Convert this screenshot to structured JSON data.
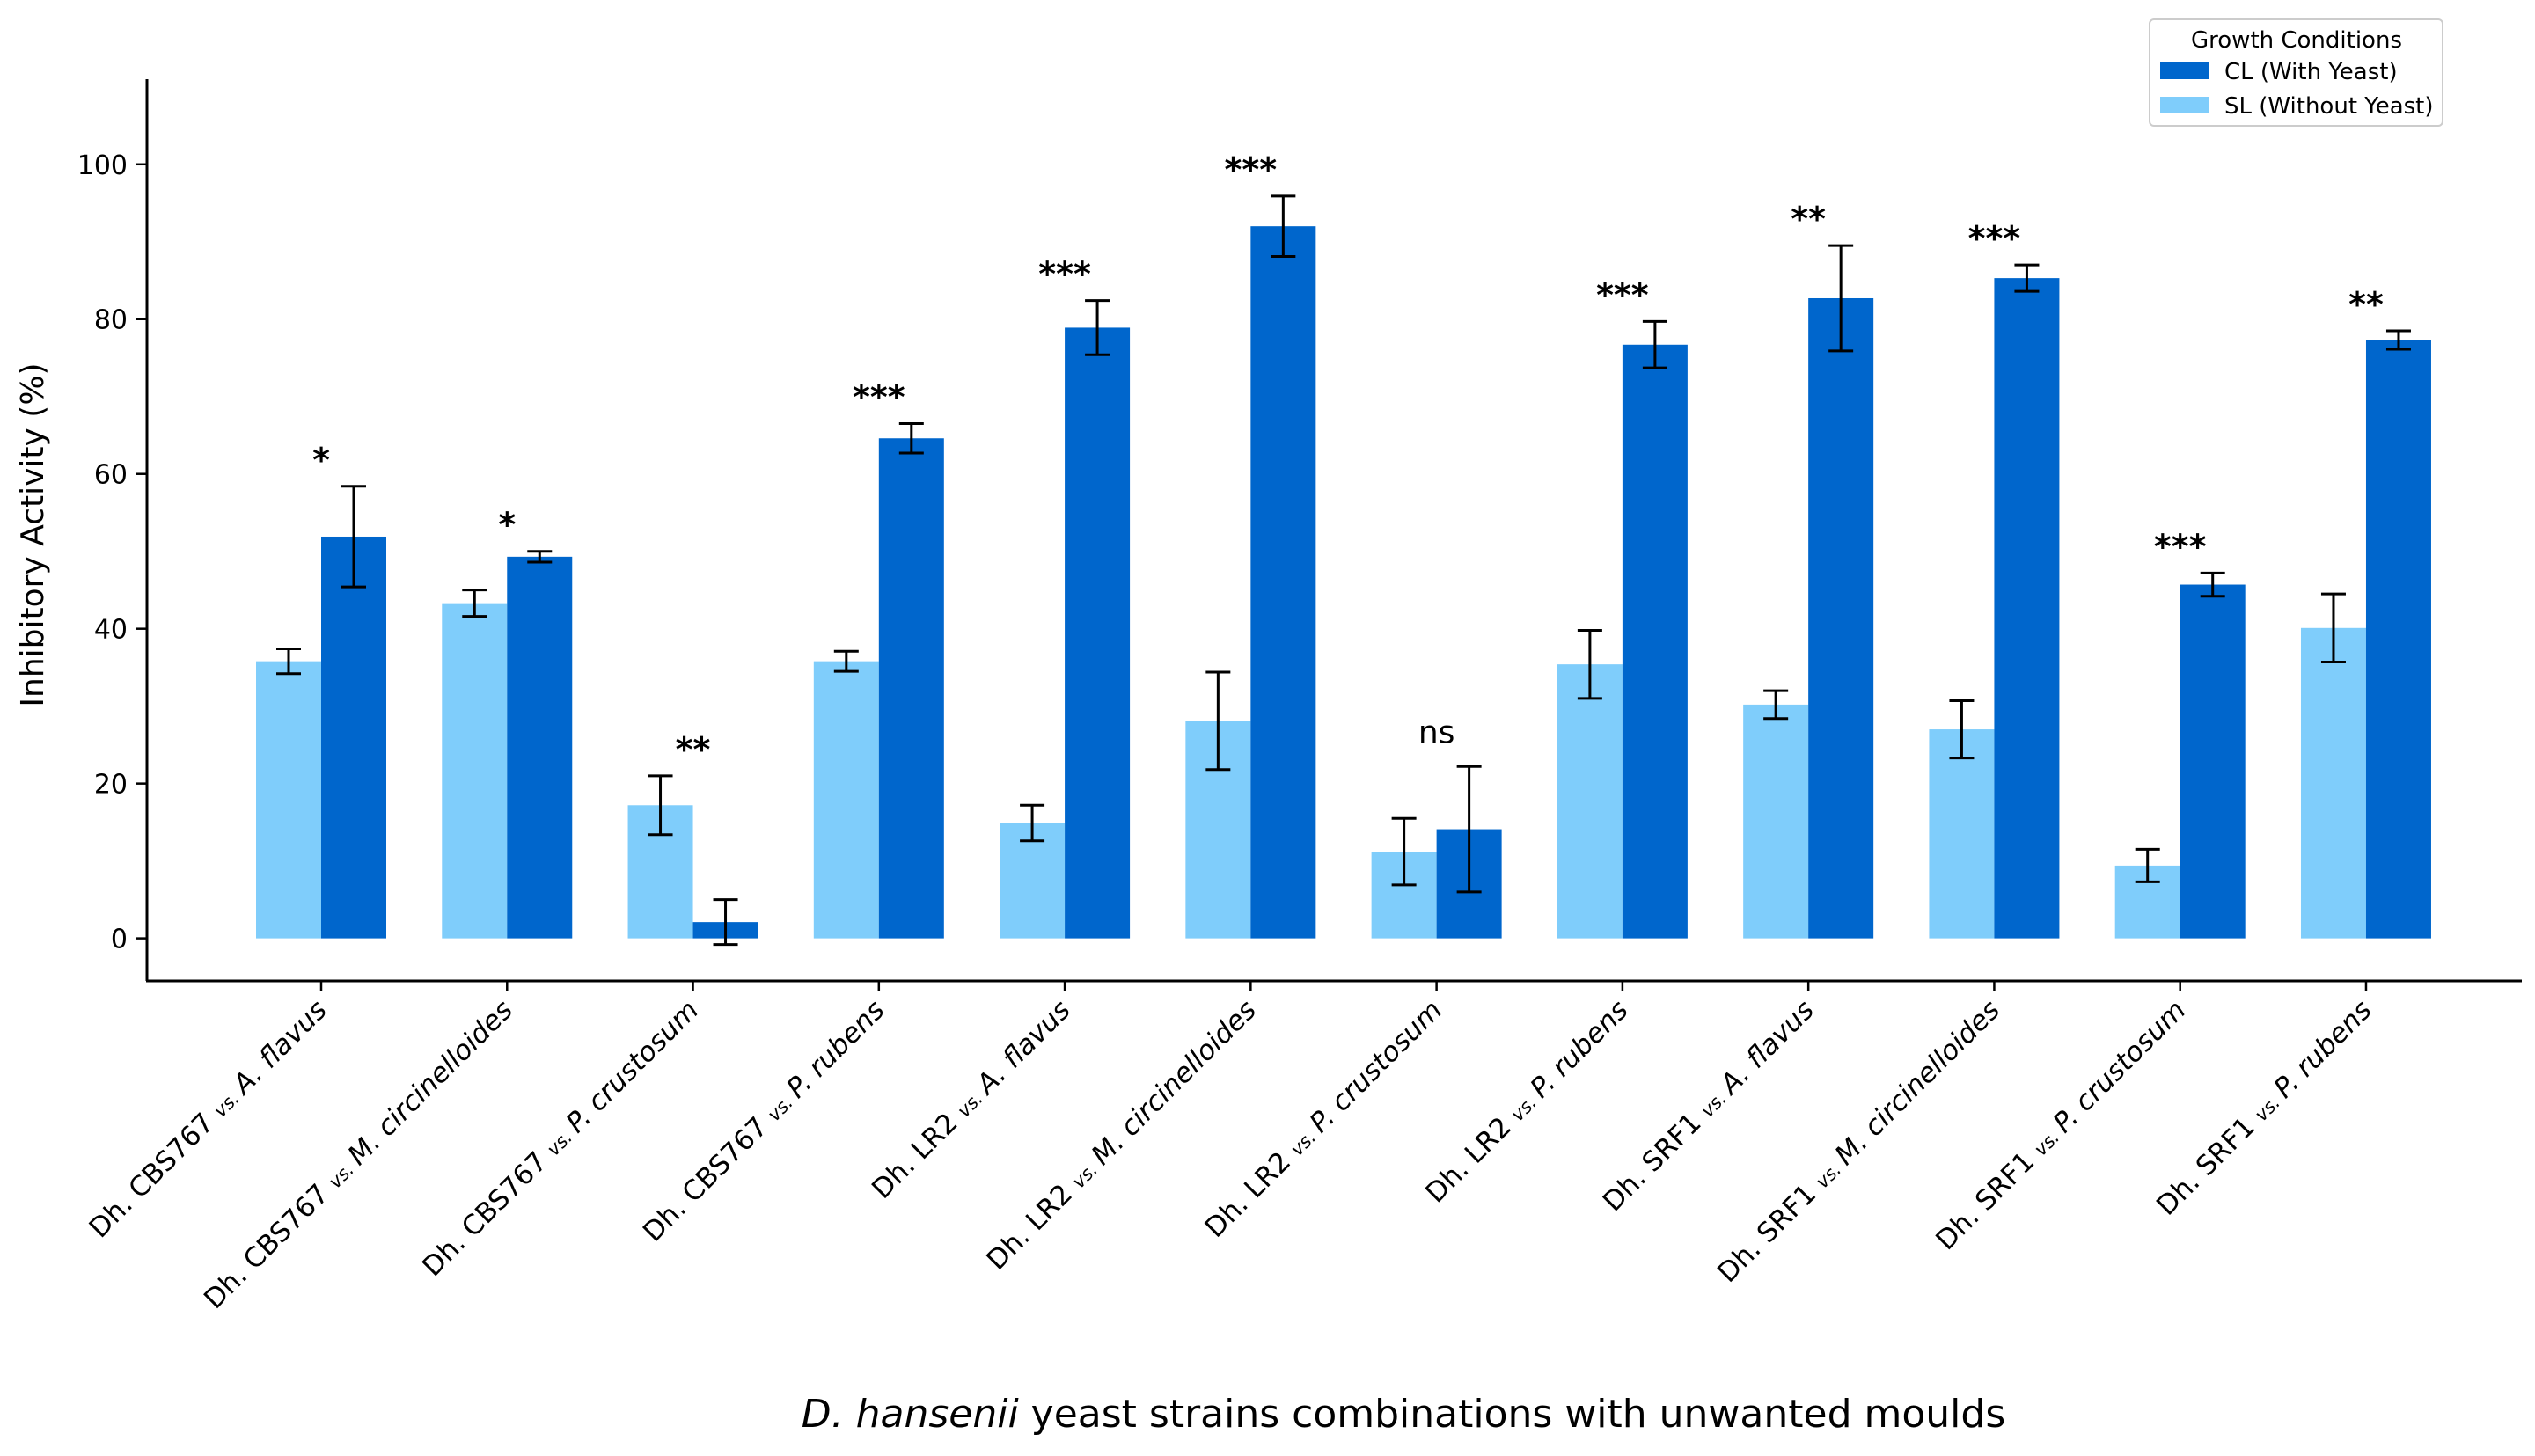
{
  "chart_data": {
    "type": "bar",
    "ylabel": "Inhibitory Activity (%)",
    "xlabel_italic": "D. hansenii",
    "xlabel_rest": " yeast strains combinations with unwanted moulds",
    "ylim": [
      -5.5,
      111
    ],
    "yticks": [
      0,
      20,
      40,
      60,
      80,
      100
    ],
    "grid": false,
    "legend": {
      "title": "Growth Conditions",
      "placement": "top-right"
    },
    "categories": [
      {
        "strain": "Dh. CBS767",
        "vs": "vs.",
        "mould": "A. flavus"
      },
      {
        "strain": "Dh. CBS767",
        "vs": "vs.",
        "mould": "M. circinelloides"
      },
      {
        "strain": "Dh. CBS767",
        "vs": "vs.",
        "mould": "P. crustosum"
      },
      {
        "strain": "Dh. CBS767",
        "vs": "vs.",
        "mould": "P. rubens"
      },
      {
        "strain": "Dh. LR2",
        "vs": "vs.",
        "mould": "A. flavus"
      },
      {
        "strain": "Dh. LR2",
        "vs": "vs.",
        "mould": "M. circinelloides"
      },
      {
        "strain": "Dh. LR2",
        "vs": "vs.",
        "mould": "P. crustosum"
      },
      {
        "strain": "Dh. LR2",
        "vs": "vs.",
        "mould": "P. rubens"
      },
      {
        "strain": "Dh. SRF1",
        "vs": "vs.",
        "mould": "A. flavus"
      },
      {
        "strain": "Dh. SRF1",
        "vs": "vs.",
        "mould": "M. circinelloides"
      },
      {
        "strain": "Dh. SRF1",
        "vs": "vs.",
        "mould": "P. crustosum"
      },
      {
        "strain": "Dh. SRF1",
        "vs": "vs.",
        "mould": "P. rubens"
      }
    ],
    "series": [
      {
        "name": "SL (Without Yeast)",
        "color": "#7fcdfb",
        "values": [
          35.8,
          43.3,
          17.2,
          35.8,
          14.9,
          28.1,
          11.2,
          35.4,
          30.2,
          27.0,
          9.4,
          40.1
        ],
        "errors": [
          1.6,
          1.7,
          3.8,
          1.3,
          2.3,
          6.3,
          4.3,
          4.4,
          1.8,
          3.7,
          2.1,
          4.4
        ]
      },
      {
        "name": "CL (With Yeast)",
        "color": "#0066cc",
        "values": [
          51.9,
          49.3,
          2.1,
          64.6,
          78.9,
          92.0,
          14.1,
          76.7,
          82.7,
          85.3,
          45.7,
          77.3
        ],
        "errors": [
          6.5,
          0.7,
          2.9,
          1.9,
          3.5,
          3.9,
          8.1,
          3.0,
          6.8,
          1.7,
          1.5,
          1.2
        ]
      }
    ],
    "significance": [
      "*",
      "*",
      "**",
      "***",
      "***",
      "***",
      "ns",
      "***",
      "**",
      "***",
      "***",
      "**"
    ]
  }
}
